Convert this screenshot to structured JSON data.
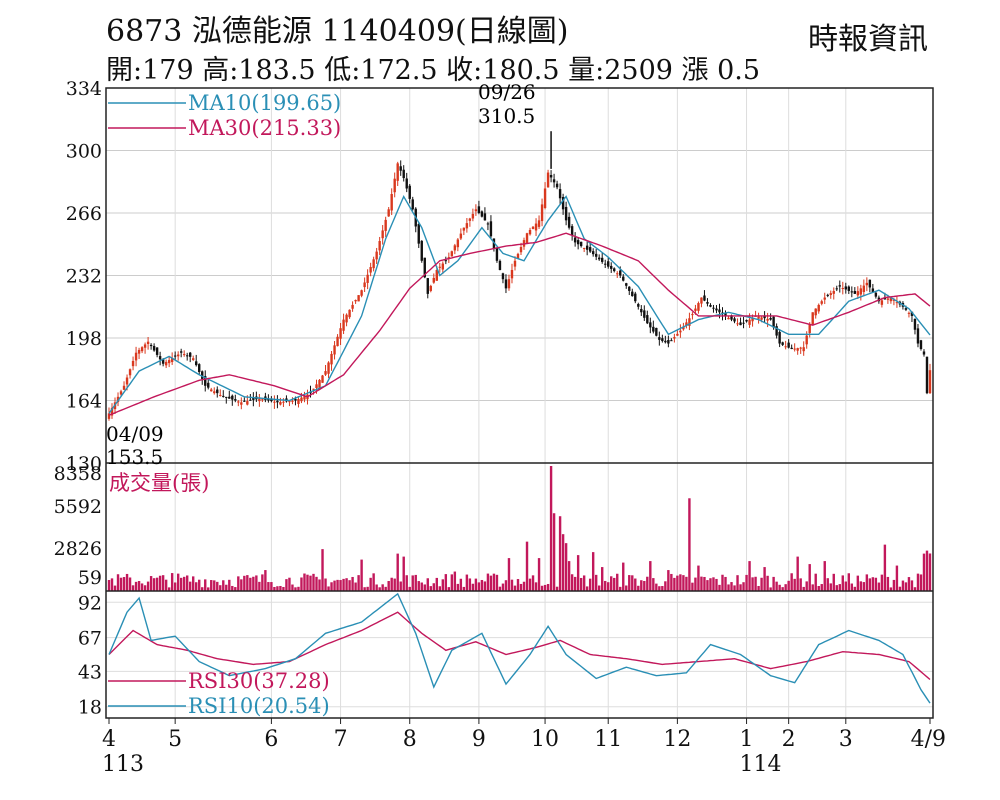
{
  "header": {
    "title": "6873  泓德能源 1140409(日線圖)",
    "source": "時報資訊",
    "quote": "開:179 高:183.5 低:172.5 收:180.5 量:2509 漲 0.5"
  },
  "colors": {
    "up": "#d9381e",
    "down": "#111111",
    "ma10": "#2a8fb5",
    "ma30": "#c2185b",
    "volume": "#c2185b",
    "rsi10": "#2a8fb5",
    "rsi30": "#c2185b"
  },
  "chart_data": [
    {
      "type": "candlestick",
      "title": "",
      "ylim": [
        130,
        334
      ],
      "yticks": [
        "334",
        "300",
        "266",
        "232",
        "198",
        "164",
        "130"
      ],
      "legend": [
        {
          "name": "MA10(199.65)",
          "color": "#2a8fb5"
        },
        {
          "name": "MA30(215.33)",
          "color": "#c2185b"
        }
      ],
      "annotations": [
        {
          "date": "09/26",
          "value": "310.5",
          "type": "high"
        },
        {
          "date": "04/09",
          "value": "153.5",
          "type": "low"
        }
      ],
      "keypoints": [
        {
          "x": 0,
          "y": 157
        },
        {
          "x": 5,
          "y": 172
        },
        {
          "x": 9,
          "y": 190
        },
        {
          "x": 13,
          "y": 196
        },
        {
          "x": 18,
          "y": 184
        },
        {
          "x": 24,
          "y": 190
        },
        {
          "x": 28,
          "y": 187
        },
        {
          "x": 32,
          "y": 172
        },
        {
          "x": 38,
          "y": 166
        },
        {
          "x": 44,
          "y": 163
        },
        {
          "x": 50,
          "y": 165
        },
        {
          "x": 56,
          "y": 163
        },
        {
          "x": 62,
          "y": 164
        },
        {
          "x": 67,
          "y": 168
        },
        {
          "x": 72,
          "y": 180
        },
        {
          "x": 78,
          "y": 208
        },
        {
          "x": 84,
          "y": 224
        },
        {
          "x": 89,
          "y": 245
        },
        {
          "x": 93,
          "y": 268
        },
        {
          "x": 96,
          "y": 293
        },
        {
          "x": 98,
          "y": 285
        },
        {
          "x": 101,
          "y": 268
        },
        {
          "x": 104,
          "y": 240
        },
        {
          "x": 106,
          "y": 222
        },
        {
          "x": 109,
          "y": 235
        },
        {
          "x": 113,
          "y": 242
        },
        {
          "x": 118,
          "y": 258
        },
        {
          "x": 122,
          "y": 268
        },
        {
          "x": 126,
          "y": 260
        },
        {
          "x": 129,
          "y": 240
        },
        {
          "x": 132,
          "y": 225
        },
        {
          "x": 135,
          "y": 240
        },
        {
          "x": 139,
          "y": 255
        },
        {
          "x": 143,
          "y": 262
        },
        {
          "x": 146,
          "y": 288
        },
        {
          "x": 149,
          "y": 280
        },
        {
          "x": 152,
          "y": 262
        },
        {
          "x": 155,
          "y": 250
        },
        {
          "x": 160,
          "y": 245
        },
        {
          "x": 165,
          "y": 238
        },
        {
          "x": 170,
          "y": 232
        },
        {
          "x": 175,
          "y": 218
        },
        {
          "x": 179,
          "y": 206
        },
        {
          "x": 183,
          "y": 197
        },
        {
          "x": 186,
          "y": 195
        },
        {
          "x": 190,
          "y": 202
        },
        {
          "x": 194,
          "y": 211
        },
        {
          "x": 197,
          "y": 220
        },
        {
          "x": 200,
          "y": 215
        },
        {
          "x": 205,
          "y": 210
        },
        {
          "x": 210,
          "y": 205
        },
        {
          "x": 215,
          "y": 210
        },
        {
          "x": 220,
          "y": 208
        },
        {
          "x": 223,
          "y": 195
        },
        {
          "x": 227,
          "y": 192
        },
        {
          "x": 231,
          "y": 193
        },
        {
          "x": 234,
          "y": 212
        },
        {
          "x": 238,
          "y": 220
        },
        {
          "x": 243,
          "y": 226
        },
        {
          "x": 248,
          "y": 222
        },
        {
          "x": 252,
          "y": 228
        },
        {
          "x": 256,
          "y": 218
        },
        {
          "x": 260,
          "y": 220
        },
        {
          "x": 264,
          "y": 215
        },
        {
          "x": 267,
          "y": 210
        },
        {
          "x": 269,
          "y": 195
        },
        {
          "x": 271,
          "y": 189
        },
        {
          "x": 272,
          "y": 168
        },
        {
          "x": 273,
          "y": 180.5
        }
      ],
      "ma10_keypoints": [
        {
          "x": 0,
          "y": 157
        },
        {
          "x": 10,
          "y": 180
        },
        {
          "x": 20,
          "y": 188
        },
        {
          "x": 30,
          "y": 178
        },
        {
          "x": 45,
          "y": 166
        },
        {
          "x": 60,
          "y": 164
        },
        {
          "x": 72,
          "y": 172
        },
        {
          "x": 84,
          "y": 210
        },
        {
          "x": 92,
          "y": 252
        },
        {
          "x": 98,
          "y": 275
        },
        {
          "x": 104,
          "y": 258
        },
        {
          "x": 110,
          "y": 232
        },
        {
          "x": 116,
          "y": 240
        },
        {
          "x": 124,
          "y": 258
        },
        {
          "x": 131,
          "y": 244
        },
        {
          "x": 138,
          "y": 240
        },
        {
          "x": 146,
          "y": 262
        },
        {
          "x": 152,
          "y": 275
        },
        {
          "x": 158,
          "y": 252
        },
        {
          "x": 166,
          "y": 242
        },
        {
          "x": 176,
          "y": 226
        },
        {
          "x": 186,
          "y": 200
        },
        {
          "x": 196,
          "y": 208
        },
        {
          "x": 206,
          "y": 212
        },
        {
          "x": 216,
          "y": 208
        },
        {
          "x": 226,
          "y": 200
        },
        {
          "x": 236,
          "y": 200
        },
        {
          "x": 246,
          "y": 218
        },
        {
          "x": 256,
          "y": 224
        },
        {
          "x": 266,
          "y": 214
        },
        {
          "x": 273,
          "y": 199.65
        }
      ],
      "ma30_keypoints": [
        {
          "x": 0,
          "y": 156
        },
        {
          "x": 15,
          "y": 166
        },
        {
          "x": 30,
          "y": 175
        },
        {
          "x": 40,
          "y": 178
        },
        {
          "x": 55,
          "y": 172
        },
        {
          "x": 66,
          "y": 166
        },
        {
          "x": 78,
          "y": 178
        },
        {
          "x": 90,
          "y": 202
        },
        {
          "x": 100,
          "y": 225
        },
        {
          "x": 110,
          "y": 240
        },
        {
          "x": 120,
          "y": 244
        },
        {
          "x": 132,
          "y": 248
        },
        {
          "x": 142,
          "y": 250
        },
        {
          "x": 152,
          "y": 255
        },
        {
          "x": 164,
          "y": 248
        },
        {
          "x": 176,
          "y": 240
        },
        {
          "x": 186,
          "y": 224
        },
        {
          "x": 196,
          "y": 210
        },
        {
          "x": 210,
          "y": 210
        },
        {
          "x": 222,
          "y": 210
        },
        {
          "x": 234,
          "y": 205
        },
        {
          "x": 246,
          "y": 212
        },
        {
          "x": 258,
          "y": 220
        },
        {
          "x": 268,
          "y": 222
        },
        {
          "x": 273,
          "y": 215.33
        }
      ]
    },
    {
      "type": "bar",
      "title": "成交量(張)",
      "ylim": [
        0,
        8358
      ],
      "yticks": [
        "8358",
        "5592",
        "2826",
        "59"
      ],
      "baseline": 800,
      "spikes": [
        {
          "x": 21,
          "v": 1200
        },
        {
          "x": 52,
          "v": 1400
        },
        {
          "x": 71,
          "v": 2800
        },
        {
          "x": 84,
          "v": 2100
        },
        {
          "x": 96,
          "v": 2500
        },
        {
          "x": 98,
          "v": 2300
        },
        {
          "x": 115,
          "v": 1300
        },
        {
          "x": 133,
          "v": 2200
        },
        {
          "x": 139,
          "v": 3300
        },
        {
          "x": 143,
          "v": 2200
        },
        {
          "x": 147,
          "v": 8358
        },
        {
          "x": 148,
          "v": 5200
        },
        {
          "x": 150,
          "v": 5000
        },
        {
          "x": 151,
          "v": 3800
        },
        {
          "x": 152,
          "v": 3200
        },
        {
          "x": 153,
          "v": 2000
        },
        {
          "x": 156,
          "v": 2400
        },
        {
          "x": 161,
          "v": 2600
        },
        {
          "x": 164,
          "v": 1600
        },
        {
          "x": 171,
          "v": 1900
        },
        {
          "x": 180,
          "v": 2000
        },
        {
          "x": 186,
          "v": 1400
        },
        {
          "x": 193,
          "v": 6200
        },
        {
          "x": 196,
          "v": 1700
        },
        {
          "x": 213,
          "v": 2000
        },
        {
          "x": 218,
          "v": 1600
        },
        {
          "x": 229,
          "v": 2300
        },
        {
          "x": 233,
          "v": 1800
        },
        {
          "x": 238,
          "v": 2000
        },
        {
          "x": 258,
          "v": 3100
        },
        {
          "x": 262,
          "v": 1700
        },
        {
          "x": 271,
          "v": 2500
        },
        {
          "x": 272,
          "v": 2700
        },
        {
          "x": 273,
          "v": 2509
        }
      ]
    },
    {
      "type": "line",
      "title": "",
      "ylim": [
        10,
        100
      ],
      "yticks": [
        "92",
        "67",
        "43",
        "18"
      ],
      "series": [
        {
          "name": "RSI30(37.28)",
          "keypoints": [
            {
              "x": 0,
              "y": 55
            },
            {
              "x": 8,
              "y": 72
            },
            {
              "x": 16,
              "y": 62
            },
            {
              "x": 26,
              "y": 58
            },
            {
              "x": 36,
              "y": 52
            },
            {
              "x": 48,
              "y": 48
            },
            {
              "x": 60,
              "y": 50
            },
            {
              "x": 72,
              "y": 62
            },
            {
              "x": 84,
              "y": 72
            },
            {
              "x": 96,
              "y": 85
            },
            {
              "x": 104,
              "y": 70
            },
            {
              "x": 112,
              "y": 58
            },
            {
              "x": 122,
              "y": 64
            },
            {
              "x": 132,
              "y": 55
            },
            {
              "x": 142,
              "y": 60
            },
            {
              "x": 150,
              "y": 65
            },
            {
              "x": 160,
              "y": 55
            },
            {
              "x": 172,
              "y": 52
            },
            {
              "x": 184,
              "y": 48
            },
            {
              "x": 196,
              "y": 50
            },
            {
              "x": 208,
              "y": 52
            },
            {
              "x": 220,
              "y": 45
            },
            {
              "x": 232,
              "y": 50
            },
            {
              "x": 244,
              "y": 57
            },
            {
              "x": 256,
              "y": 55
            },
            {
              "x": 266,
              "y": 50
            },
            {
              "x": 273,
              "y": 37.28
            }
          ]
        },
        {
          "name": "RSI10(20.54)",
          "keypoints": [
            {
              "x": 0,
              "y": 55
            },
            {
              "x": 6,
              "y": 85
            },
            {
              "x": 10,
              "y": 95
            },
            {
              "x": 14,
              "y": 65
            },
            {
              "x": 22,
              "y": 68
            },
            {
              "x": 30,
              "y": 50
            },
            {
              "x": 40,
              "y": 40
            },
            {
              "x": 52,
              "y": 45
            },
            {
              "x": 62,
              "y": 52
            },
            {
              "x": 72,
              "y": 70
            },
            {
              "x": 84,
              "y": 78
            },
            {
              "x": 96,
              "y": 98
            },
            {
              "x": 102,
              "y": 70
            },
            {
              "x": 108,
              "y": 32
            },
            {
              "x": 114,
              "y": 58
            },
            {
              "x": 124,
              "y": 70
            },
            {
              "x": 132,
              "y": 34
            },
            {
              "x": 140,
              "y": 55
            },
            {
              "x": 146,
              "y": 75
            },
            {
              "x": 152,
              "y": 55
            },
            {
              "x": 162,
              "y": 38
            },
            {
              "x": 172,
              "y": 46
            },
            {
              "x": 182,
              "y": 40
            },
            {
              "x": 192,
              "y": 42
            },
            {
              "x": 200,
              "y": 62
            },
            {
              "x": 210,
              "y": 55
            },
            {
              "x": 220,
              "y": 40
            },
            {
              "x": 228,
              "y": 35
            },
            {
              "x": 236,
              "y": 62
            },
            {
              "x": 246,
              "y": 72
            },
            {
              "x": 256,
              "y": 65
            },
            {
              "x": 264,
              "y": 55
            },
            {
              "x": 270,
              "y": 30
            },
            {
              "x": 273,
              "y": 20.54
            }
          ]
        }
      ]
    }
  ],
  "x_axis": {
    "months": [
      {
        "label": "4",
        "x": 0
      },
      {
        "label": "5",
        "x": 22
      },
      {
        "label": "6",
        "x": 54
      },
      {
        "label": "7",
        "x": 77
      },
      {
        "label": "8",
        "x": 100
      },
      {
        "label": "9",
        "x": 123
      },
      {
        "label": "10",
        "x": 145
      },
      {
        "label": "11",
        "x": 166
      },
      {
        "label": "12",
        "x": 189
      },
      {
        "label": "1",
        "x": 212
      },
      {
        "label": "2",
        "x": 226
      },
      {
        "label": "3",
        "x": 245
      },
      {
        "label": "4/9",
        "x": 273
      }
    ],
    "years": [
      {
        "label": "113",
        "x": 0
      },
      {
        "label": "114",
        "x": 212
      }
    ]
  }
}
